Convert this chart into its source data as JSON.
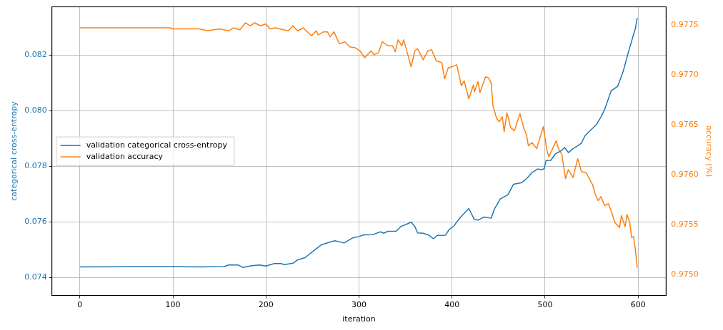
{
  "chart_data": {
    "type": "line",
    "xlabel": "iteration",
    "ylabel": "categorical cross-entropy",
    "y2label": "accuracy (%)",
    "xlim": [
      -30,
      630
    ],
    "xticks": [
      0,
      100,
      200,
      300,
      400,
      500,
      600
    ],
    "ylim": [
      0.07335,
      0.08373
    ],
    "yticks": [
      0.074,
      0.076,
      0.078,
      {
        "value": 0.08,
        "label": "0.080"
      },
      0.082
    ],
    "y2lim": [
      0.97479,
      0.97768
    ],
    "y2ticks": [
      {
        "value": 0.975,
        "label": "0.9750"
      },
      {
        "value": 0.9755,
        "label": "0.9755"
      },
      {
        "value": 0.976,
        "label": "0.9760"
      },
      {
        "value": 0.9765,
        "label": "0.9765"
      },
      {
        "value": 0.977,
        "label": "0.9770"
      },
      {
        "value": 0.9775,
        "label": "0.9775"
      }
    ],
    "grid": true,
    "legend": "left",
    "marker": "none",
    "line_style": "solid",
    "series": [
      {
        "name": "validation categorical cross-entropy",
        "color": "#1f77b4",
        "x": [
          0,
          100,
          130,
          155,
          160,
          170,
          175,
          185,
          193,
          200,
          209,
          216,
          220,
          229,
          234,
          242,
          251,
          260,
          268,
          274,
          284,
          293,
          300,
          305,
          315,
          323,
          327,
          331,
          340,
          345,
          353,
          356,
          360,
          363,
          369,
          375,
          380,
          384,
          393,
          397,
          402,
          407,
          410,
          418,
          424,
          428,
          434,
          442,
          446,
          452,
          460,
          466,
          475,
          480,
          486,
          492,
          496,
          499,
          501,
          506,
          511,
          517,
          521,
          525,
          530,
          535,
          539,
          543,
          549,
          555,
          560,
          564,
          571,
          578,
          584,
          590,
          597,
          599
        ],
        "values": [
          0.07438,
          0.07439,
          0.07438,
          0.07439,
          0.07445,
          0.07445,
          0.07436,
          0.07442,
          0.07445,
          0.07441,
          0.0745,
          0.0745,
          0.07446,
          0.07451,
          0.07463,
          0.07471,
          0.07495,
          0.07518,
          0.07526,
          0.07532,
          0.07524,
          0.07542,
          0.07547,
          0.07553,
          0.07554,
          0.07564,
          0.07559,
          0.07566,
          0.07566,
          0.07583,
          0.07594,
          0.07599,
          0.07583,
          0.0756,
          0.07559,
          0.07552,
          0.07539,
          0.07551,
          0.07552,
          0.07573,
          0.07585,
          0.07608,
          0.0762,
          0.07648,
          0.07608,
          0.07606,
          0.07617,
          0.07613,
          0.07649,
          0.07683,
          0.07697,
          0.07735,
          0.07741,
          0.07755,
          0.07777,
          0.0779,
          0.07787,
          0.07791,
          0.0782,
          0.07821,
          0.07844,
          0.07855,
          0.07867,
          0.07849,
          0.07863,
          0.07873,
          0.07883,
          0.0791,
          0.0793,
          0.07949,
          0.07977,
          0.08004,
          0.08071,
          0.08087,
          0.08142,
          0.08216,
          0.08295,
          0.08333
        ]
      },
      {
        "name": "validation accuracy",
        "color": "#ff7f0e",
        "axis": "y2",
        "x": [
          0,
          97,
          99,
          128,
          133,
          137,
          150,
          160,
          165,
          172,
          178,
          183,
          188,
          194,
          200,
          204,
          210,
          224,
          229,
          234,
          240,
          249,
          254,
          256,
          262,
          266,
          269,
          273,
          279,
          285,
          290,
          296,
          301,
          306,
          309,
          313,
          316,
          321,
          325,
          331,
          336,
          339,
          342,
          346,
          348,
          351,
          356,
          360,
          363,
          369,
          374,
          378,
          383,
          389,
          392,
          396,
          400,
          405,
          410,
          413,
          418,
          423,
          424,
          428,
          430,
          436,
          439,
          442,
          444,
          448,
          451,
          454,
          456,
          459,
          463,
          467,
          473,
          477,
          480,
          482,
          486,
          491,
          498,
          502,
          504,
          507,
          512,
          514,
          518,
          522,
          525,
          530,
          535,
          539,
          544,
          551,
          554,
          557,
          560,
          564,
          568,
          572,
          575,
          580,
          582,
          586,
          588,
          591,
          593,
          595,
          597,
          599
        ],
        "values": [
          0.97747,
          0.97747,
          0.97746,
          0.97746,
          0.97745,
          0.97744,
          0.97746,
          0.97744,
          0.97747,
          0.97745,
          0.97752,
          0.97749,
          0.97752,
          0.97749,
          0.97751,
          0.97746,
          0.97747,
          0.97744,
          0.97749,
          0.97744,
          0.97747,
          0.97739,
          0.97744,
          0.9774,
          0.97743,
          0.97743,
          0.97738,
          0.97743,
          0.97731,
          0.97733,
          0.97728,
          0.97727,
          0.97724,
          0.97717,
          0.9772,
          0.97724,
          0.9772,
          0.97722,
          0.97733,
          0.97729,
          0.97729,
          0.97723,
          0.97735,
          0.97729,
          0.97735,
          0.97725,
          0.97708,
          0.97724,
          0.97726,
          0.97715,
          0.97724,
          0.97725,
          0.97714,
          0.97712,
          0.97696,
          0.97707,
          0.97708,
          0.9771,
          0.97689,
          0.97694,
          0.97676,
          0.9769,
          0.97683,
          0.97693,
          0.97682,
          0.97698,
          0.97697,
          0.97692,
          0.97669,
          0.97656,
          0.97653,
          0.97658,
          0.97643,
          0.97662,
          0.97647,
          0.97644,
          0.97661,
          0.97647,
          0.9764,
          0.97629,
          0.97632,
          0.97626,
          0.97648,
          0.97624,
          0.97618,
          0.97624,
          0.97634,
          0.97627,
          0.9762,
          0.97596,
          0.97605,
          0.97597,
          0.97616,
          0.97603,
          0.97602,
          0.9759,
          0.9758,
          0.97574,
          0.97578,
          0.97569,
          0.97571,
          0.97561,
          0.97552,
          0.97547,
          0.97559,
          0.97548,
          0.9756,
          0.97552,
          0.97537,
          0.97538,
          0.97525,
          0.97507
        ]
      }
    ]
  }
}
